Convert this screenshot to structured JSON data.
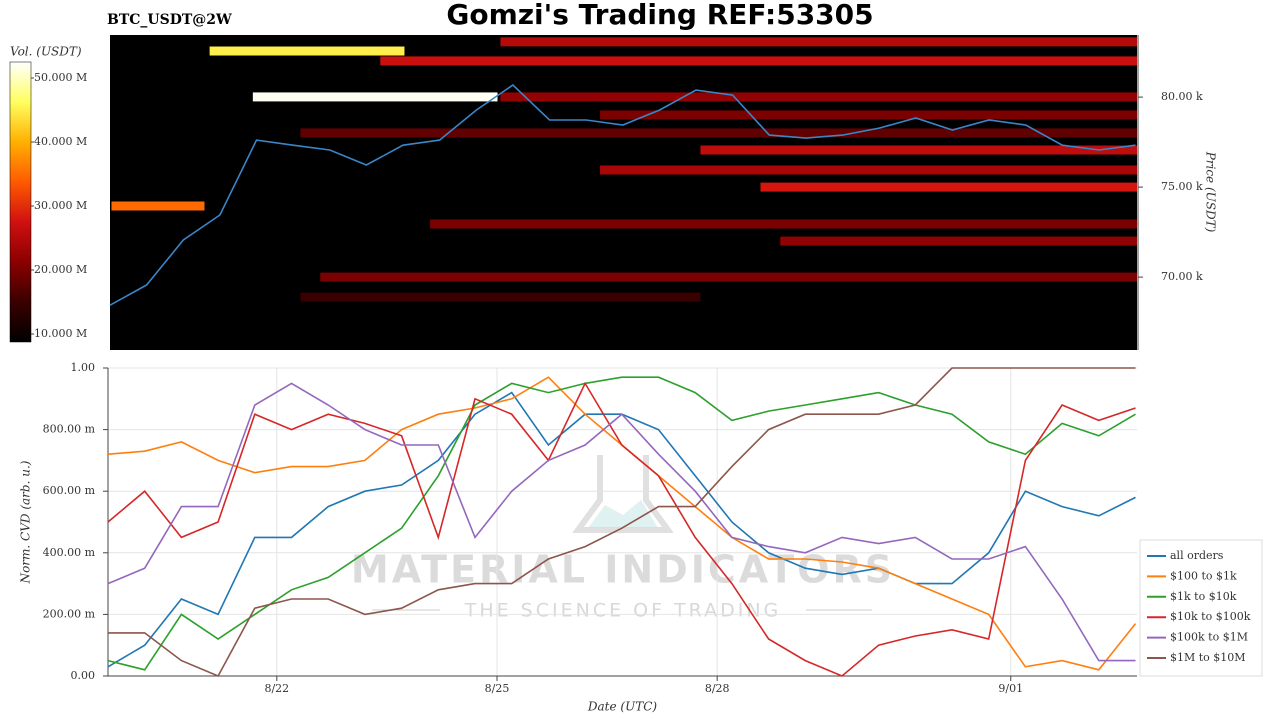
{
  "title": "Gomzi's Trading REF:53305",
  "watermark": {
    "title": "MATERIAL INDICATORS",
    "subtitle": "THE SCIENCE OF TRADING"
  },
  "chart_data": [
    {
      "type": "heatmap",
      "title": "BTC_USDT@2W",
      "xlim": [
        19.7,
        33.72
      ],
      "x": [
        19.7,
        20.2,
        20.7,
        21.2,
        21.7,
        22.2,
        22.7,
        23.2,
        23.7,
        24.2,
        24.7,
        25.2,
        25.7,
        26.2,
        26.7,
        27.2,
        27.7,
        28.2,
        28.7,
        29.2,
        29.7,
        30.2,
        30.7,
        31.2,
        31.7,
        32.2,
        32.7,
        33.2,
        33.7
      ],
      "price": {
        "color": "#3a86c8",
        "values": [
          68440,
          69560,
          72060,
          73450,
          77610,
          77330,
          77060,
          76230,
          77330,
          77610,
          79280,
          80670,
          78730,
          78730,
          78450,
          79280,
          80390,
          80110,
          77890,
          77720,
          77890,
          78280,
          78840,
          78170,
          78730,
          78450,
          77330,
          77060,
          77330
        ]
      },
      "ylabel": "Price (USDT)",
      "ylim": [
        65950,
        83450
      ],
      "yticks": [
        {
          "value": 70000,
          "label": "70.00 k"
        },
        {
          "value": 75000,
          "label": "75.00 k"
        },
        {
          "value": 80000,
          "label": "80.00 k"
        }
      ],
      "colorbar": {
        "label": "Vol. (USDT)",
        "lim": [
          8750000,
          52500000
        ],
        "ticks": [
          {
            "value": 10000000,
            "label": "10.000 M"
          },
          {
            "value": 20000000,
            "label": "20.000 M"
          },
          {
            "value": 30000000,
            "label": "30.000 M"
          },
          {
            "value": 40000000,
            "label": "40.000 M"
          },
          {
            "value": 50000000,
            "label": "50.000 M"
          }
        ],
        "colors": [
          "#000000",
          "#3a0000",
          "#8b0000",
          "#d01010",
          "#ff5a00",
          "#ffb000",
          "#ffff60",
          "#ffffff"
        ]
      },
      "levels": [
        {
          "price": 83070,
          "x": [
            25.03,
            33.72
          ],
          "volume": 25000000
        },
        {
          "price": 82560,
          "x": [
            21.06,
            23.72
          ],
          "volume": 45000000
        },
        {
          "price": 82010,
          "x": [
            23.39,
            33.72
          ],
          "volume": 27000000
        },
        {
          "price": 80010,
          "x": [
            21.65,
            24.99
          ],
          "volume": 52000000
        },
        {
          "price": 80010,
          "x": [
            25.03,
            33.72
          ],
          "volume": 22000000
        },
        {
          "price": 79010,
          "x": [
            26.39,
            33.72
          ],
          "volume": 20000000
        },
        {
          "price": 78010,
          "x": [
            22.3,
            33.72
          ],
          "volume": 18000000
        },
        {
          "price": 77060,
          "x": [
            27.76,
            33.72
          ],
          "volume": 26000000
        },
        {
          "price": 75950,
          "x": [
            26.39,
            33.72
          ],
          "volume": 24000000
        },
        {
          "price": 75000,
          "x": [
            28.58,
            33.72
          ],
          "volume": 28000000
        },
        {
          "price": 73950,
          "x": [
            19.72,
            20.99
          ],
          "volume": 35000000
        },
        {
          "price": 72950,
          "x": [
            24.07,
            33.72
          ],
          "volume": 20000000
        },
        {
          "price": 72000,
          "x": [
            28.85,
            33.72
          ],
          "volume": 22000000
        },
        {
          "price": 70000,
          "x": [
            22.57,
            33.72
          ],
          "volume": 20000000
        },
        {
          "price": 68890,
          "x": [
            22.3,
            27.76
          ],
          "volume": 15000000
        }
      ]
    },
    {
      "type": "line",
      "xlabel": "Date (UTC)",
      "ylabel": "Norm. CVD (arb. u.)",
      "xlim": [
        19.7,
        33.72
      ],
      "xticks": [
        {
          "value": 22,
          "label": "8/22"
        },
        {
          "value": 25,
          "label": "8/25"
        },
        {
          "value": 28,
          "label": "8/28"
        },
        {
          "value": 32,
          "label": "9/01"
        }
      ],
      "ylim": [
        0,
        1
      ],
      "yticks": [
        {
          "value": 0,
          "label": "0.00"
        },
        {
          "value": 0.2,
          "label": "200.00 m"
        },
        {
          "value": 0.4,
          "label": "400.00 m"
        },
        {
          "value": 0.6,
          "label": "600.00 m"
        },
        {
          "value": 0.8,
          "label": "800.00 m"
        },
        {
          "value": 1,
          "label": "1.00"
        }
      ],
      "grid": true,
      "x": [
        19.7,
        20.2,
        20.7,
        21.2,
        21.7,
        22.2,
        22.7,
        23.2,
        23.7,
        24.2,
        24.7,
        25.2,
        25.7,
        26.2,
        26.7,
        27.2,
        27.7,
        28.2,
        28.7,
        29.2,
        29.7,
        30.2,
        30.7,
        31.2,
        31.7,
        32.2,
        32.7,
        33.2,
        33.7
      ],
      "series": [
        {
          "name": "all orders",
          "color": "#1f77b4",
          "values": [
            0.03,
            0.1,
            0.25,
            0.2,
            0.45,
            0.45,
            0.55,
            0.6,
            0.62,
            0.7,
            0.85,
            0.92,
            0.75,
            0.85,
            0.85,
            0.8,
            0.65,
            0.5,
            0.4,
            0.35,
            0.33,
            0.35,
            0.3,
            0.3,
            0.4,
            0.6,
            0.55,
            0.52,
            0.58
          ]
        },
        {
          "name": "$100 to $1k",
          "color": "#ff7f0e",
          "values": [
            0.72,
            0.73,
            0.76,
            0.7,
            0.66,
            0.68,
            0.68,
            0.7,
            0.8,
            0.85,
            0.87,
            0.9,
            0.97,
            0.85,
            0.75,
            0.65,
            0.55,
            0.45,
            0.38,
            0.38,
            0.37,
            0.35,
            0.3,
            0.25,
            0.2,
            0.03,
            0.05,
            0.02,
            0.17
          ]
        },
        {
          "name": "$1k to $10k",
          "color": "#2ca02c",
          "values": [
            0.05,
            0.02,
            0.2,
            0.12,
            0.2,
            0.28,
            0.32,
            0.4,
            0.48,
            0.65,
            0.88,
            0.95,
            0.92,
            0.95,
            0.97,
            0.97,
            0.92,
            0.83,
            0.86,
            0.88,
            0.9,
            0.92,
            0.88,
            0.85,
            0.76,
            0.72,
            0.82,
            0.78,
            0.85
          ]
        },
        {
          "name": "$10k to $100k",
          "color": "#d62728",
          "values": [
            0.5,
            0.6,
            0.45,
            0.5,
            0.85,
            0.8,
            0.85,
            0.82,
            0.78,
            0.45,
            0.9,
            0.85,
            0.7,
            0.95,
            0.75,
            0.65,
            0.45,
            0.3,
            0.12,
            0.05,
            0.0,
            0.1,
            0.13,
            0.15,
            0.12,
            0.7,
            0.88,
            0.83,
            0.87
          ]
        },
        {
          "name": "$100k to $1M",
          "color": "#9467bd",
          "values": [
            0.3,
            0.35,
            0.55,
            0.55,
            0.88,
            0.95,
            0.88,
            0.8,
            0.75,
            0.75,
            0.45,
            0.6,
            0.7,
            0.75,
            0.85,
            0.72,
            0.6,
            0.45,
            0.42,
            0.4,
            0.45,
            0.43,
            0.45,
            0.38,
            0.38,
            0.42,
            0.25,
            0.05,
            0.05
          ]
        },
        {
          "name": "$1M to $10M",
          "color": "#8c564b",
          "values": [
            0.14,
            0.14,
            0.05,
            0.0,
            0.22,
            0.25,
            0.25,
            0.2,
            0.22,
            0.28,
            0.3,
            0.3,
            0.38,
            0.42,
            0.48,
            0.55,
            0.55,
            0.68,
            0.8,
            0.85,
            0.85,
            0.85,
            0.88,
            1.0,
            1.0,
            1.0,
            1.0,
            1.0,
            1.0
          ]
        }
      ]
    }
  ]
}
